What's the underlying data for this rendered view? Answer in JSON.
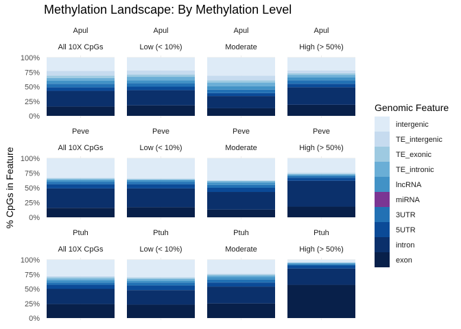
{
  "chart_data": {
    "type": "bar",
    "stacked": true,
    "title": "Methylation Landscape: By Methylation Level",
    "xlabel": "",
    "ylabel": "% CpGs in Feature",
    "ylim": [
      0,
      100
    ],
    "yticks": [
      "0%",
      "25%",
      "50%",
      "75%",
      "100%"
    ],
    "grid": true,
    "legend": {
      "title": "Genomic Feature",
      "placement": "right",
      "items": [
        "intergenic",
        "TE_intergenic",
        "TE_exonic",
        "TE_intronic",
        "lncRNA",
        "miRNA",
        "3UTR",
        "5UTR",
        "intron",
        "exon"
      ]
    },
    "colors": {
      "exon": "#08204a",
      "intron": "#0b306b",
      "5UTR": "#0b4a97",
      "3UTR": "#2271b4",
      "miRNA": "#7b3593",
      "lncRNA": "#4292c6",
      "TE_intronic": "#6aaed6",
      "TE_exonic": "#9ecae1",
      "TE_intergenic": "#c6dbef",
      "intergenic": "#deebf7"
    },
    "stack_order": [
      "exon",
      "intron",
      "5UTR",
      "3UTR",
      "miRNA",
      "lncRNA",
      "TE_intronic",
      "TE_exonic",
      "TE_intergenic",
      "intergenic"
    ],
    "species": [
      "Apul",
      "Peve",
      "Ptuh"
    ],
    "levels": [
      "All 10X CpGs",
      "Low (< 10%)",
      "Moderate",
      "High (> 50%)"
    ],
    "panels": [
      {
        "species": "Apul",
        "level": "All 10X CpGs",
        "values": {
          "exon": 16,
          "intron": 27,
          "5UTR": 6,
          "3UTR": 6,
          "miRNA": 0,
          "lncRNA": 5,
          "TE_intronic": 5,
          "TE_exonic": 4,
          "TE_intergenic": 8,
          "intergenic": 23
        }
      },
      {
        "species": "Apul",
        "level": "Low (< 10%)",
        "values": {
          "exon": 18,
          "intron": 26,
          "5UTR": 6,
          "3UTR": 6,
          "miRNA": 0,
          "lncRNA": 5,
          "TE_intronic": 6,
          "TE_exonic": 4,
          "TE_intergenic": 7,
          "intergenic": 22
        }
      },
      {
        "species": "Apul",
        "level": "Moderate",
        "values": {
          "exon": 13,
          "intron": 21,
          "5UTR": 5,
          "3UTR": 6,
          "miRNA": 0,
          "lncRNA": 6,
          "TE_intronic": 6,
          "TE_exonic": 4,
          "TE_intergenic": 8,
          "intergenic": 31
        }
      },
      {
        "species": "Apul",
        "level": "High (> 50%)",
        "values": {
          "exon": 19,
          "intron": 30,
          "5UTR": 6,
          "3UTR": 6,
          "miRNA": 0,
          "lncRNA": 5,
          "TE_intronic": 4,
          "TE_exonic": 3,
          "TE_intergenic": 5,
          "intergenic": 22
        }
      },
      {
        "species": "Peve",
        "level": "All 10X CpGs",
        "values": {
          "exon": 16,
          "intron": 33,
          "5UTR": 7,
          "3UTR": 4,
          "miRNA": 0,
          "lncRNA": 3,
          "TE_intronic": 2,
          "TE_exonic": 1,
          "TE_intergenic": 1,
          "intergenic": 33
        }
      },
      {
        "species": "Peve",
        "level": "Low (< 10%)",
        "values": {
          "exon": 17,
          "intron": 32,
          "5UTR": 7,
          "3UTR": 4,
          "miRNA": 0,
          "lncRNA": 3,
          "TE_intronic": 1,
          "TE_exonic": 1,
          "TE_intergenic": 1,
          "intergenic": 34
        }
      },
      {
        "species": "Peve",
        "level": "Moderate",
        "values": {
          "exon": 13,
          "intron": 30,
          "5UTR": 7,
          "3UTR": 5,
          "miRNA": 0,
          "lncRNA": 4,
          "TE_intronic": 2,
          "TE_exonic": 1,
          "TE_intergenic": 1,
          "intergenic": 37
        }
      },
      {
        "species": "Peve",
        "level": "High (> 50%)",
        "values": {
          "exon": 18,
          "intron": 44,
          "5UTR": 5,
          "3UTR": 3,
          "miRNA": 0,
          "lncRNA": 2,
          "TE_intronic": 1,
          "TE_exonic": 1,
          "TE_intergenic": 2,
          "intergenic": 24
        }
      },
      {
        "species": "Ptuh",
        "level": "All 10X CpGs",
        "values": {
          "exon": 24,
          "intron": 26,
          "5UTR": 7,
          "3UTR": 4,
          "miRNA": 0,
          "lncRNA": 4,
          "TE_intronic": 3,
          "TE_exonic": 2,
          "TE_intergenic": 2,
          "intergenic": 28
        }
      },
      {
        "species": "Ptuh",
        "level": "Low (< 10%)",
        "values": {
          "exon": 23,
          "intron": 25,
          "5UTR": 8,
          "3UTR": 5,
          "miRNA": 0,
          "lncRNA": 3,
          "TE_intronic": 3,
          "TE_exonic": 2,
          "TE_intergenic": 1,
          "intergenic": 30
        }
      },
      {
        "species": "Ptuh",
        "level": "Moderate",
        "values": {
          "exon": 25,
          "intron": 29,
          "5UTR": 7,
          "3UTR": 5,
          "miRNA": 0,
          "lncRNA": 4,
          "TE_intronic": 3,
          "TE_exonic": 2,
          "TE_intergenic": 1,
          "intergenic": 24
        }
      },
      {
        "species": "Ptuh",
        "level": "High (> 50%)",
        "values": {
          "exon": 57,
          "intron": 28,
          "5UTR": 5,
          "3UTR": 2,
          "miRNA": 0,
          "lncRNA": 2,
          "TE_intronic": 1,
          "TE_exonic": 0,
          "TE_intergenic": 1,
          "intergenic": 4
        }
      }
    ]
  }
}
